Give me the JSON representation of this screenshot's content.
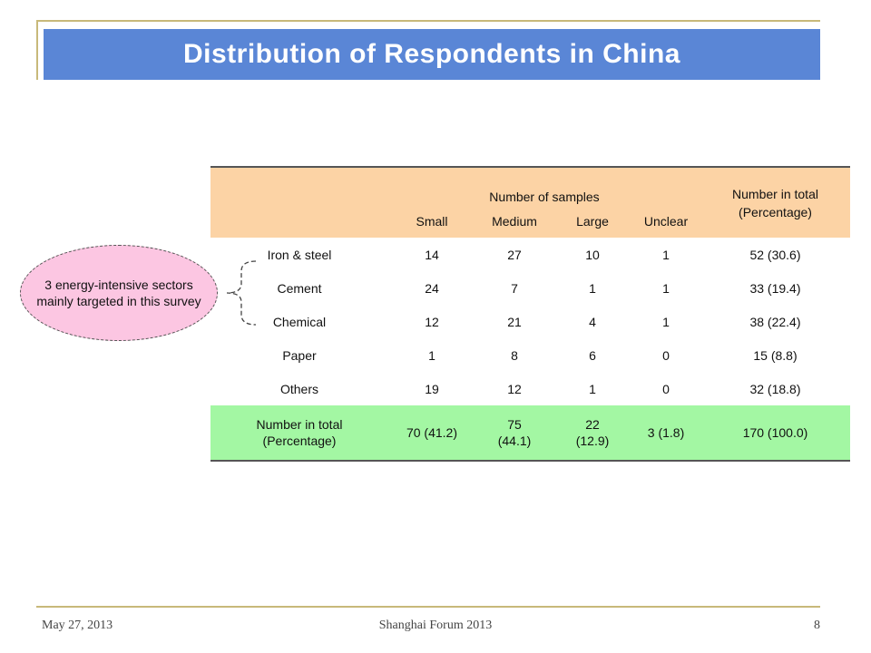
{
  "title": "Distribution of Respondents in China",
  "table": {
    "group_header": "Number of samples",
    "total_header": "Number in total (Percentage)",
    "columns": [
      "Small",
      "Medium",
      "Large",
      "Unclear"
    ],
    "rows": [
      {
        "label": "Iron & steel",
        "values": [
          "14",
          "27",
          "10",
          "1"
        ],
        "total": "52 (30.6)"
      },
      {
        "label": "Cement",
        "values": [
          "24",
          "7",
          "1",
          "1"
        ],
        "total": "33 (19.4)"
      },
      {
        "label": "Chemical",
        "values": [
          "12",
          "21",
          "4",
          "1"
        ],
        "total": "38 (22.4)"
      },
      {
        "label": "Paper",
        "values": [
          "1",
          "8",
          "6",
          "0"
        ],
        "total": "15 (8.8)"
      },
      {
        "label": "Others",
        "values": [
          "19",
          "12",
          "1",
          "0"
        ],
        "total": "32 (18.8)"
      }
    ],
    "total_row": {
      "label": "Number in total (Percentage)",
      "values": [
        "70 (41.2)",
        "75 (44.1)",
        "22 (12.9)",
        "3 (1.8)"
      ],
      "total": "170 (100.0)"
    }
  },
  "callout": "3 energy-intensive sectors mainly targeted in this survey",
  "footer": {
    "date": "May 27, 2013",
    "event": "Shanghai Forum 2013",
    "page": "8"
  }
}
